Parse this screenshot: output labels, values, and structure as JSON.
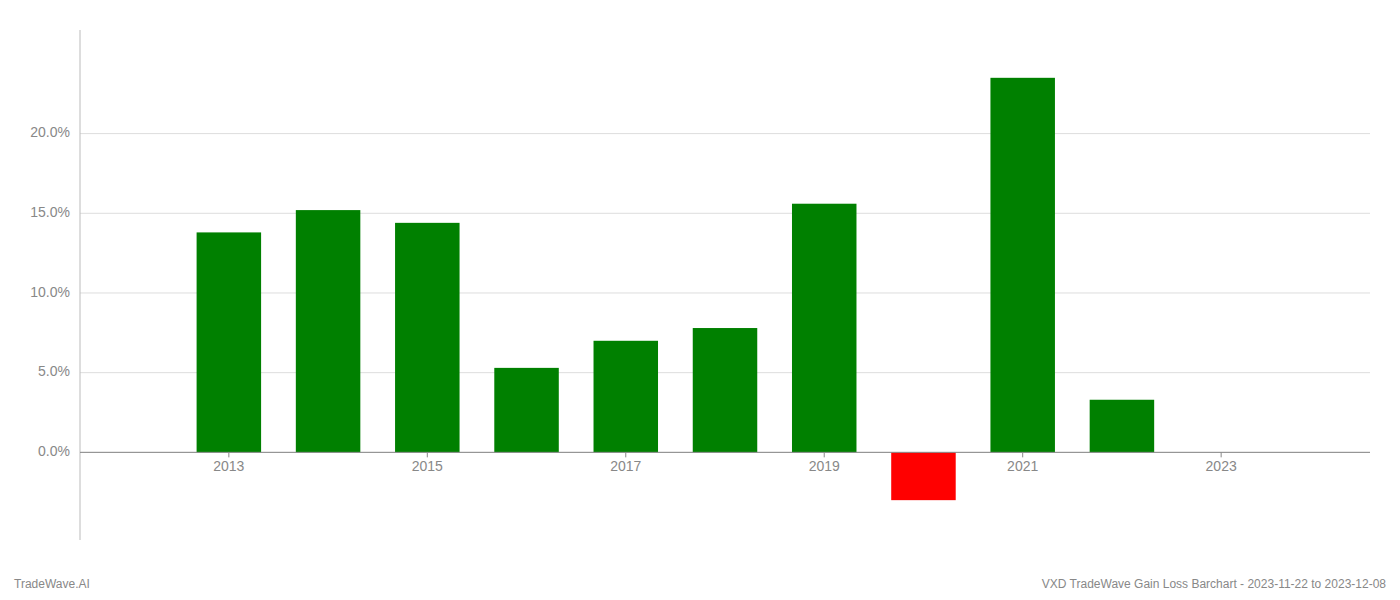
{
  "chart_data": {
    "type": "bar",
    "x": [
      2013,
      2014,
      2015,
      2016,
      2017,
      2018,
      2019,
      2020,
      2021,
      2022
    ],
    "values": [
      0.138,
      0.152,
      0.144,
      0.053,
      0.07,
      0.078,
      0.156,
      -0.03,
      0.235,
      0.033
    ],
    "colors": [
      "#008000",
      "#008000",
      "#008000",
      "#008000",
      "#008000",
      "#008000",
      "#008000",
      "#ff0000",
      "#008000",
      "#008000"
    ],
    "xlim": [
      2011.5,
      2024.5
    ],
    "xticks": [
      2013,
      2015,
      2017,
      2019,
      2021,
      2023
    ],
    "ylim": [
      -0.055,
      0.265
    ],
    "yticks": [
      {
        "value": 0.0,
        "label": "0.0%"
      },
      {
        "value": 0.05,
        "label": "5.0%"
      },
      {
        "value": 0.1,
        "label": "10.0%"
      },
      {
        "value": 0.15,
        "label": "15.0%"
      },
      {
        "value": 0.2,
        "label": "20.0%"
      }
    ],
    "grid": true,
    "annotations": [
      "TradeWave.AI",
      "VXD TradeWave Gain Loss Barchart - 2023-11-22 to 2023-12-08"
    ]
  }
}
